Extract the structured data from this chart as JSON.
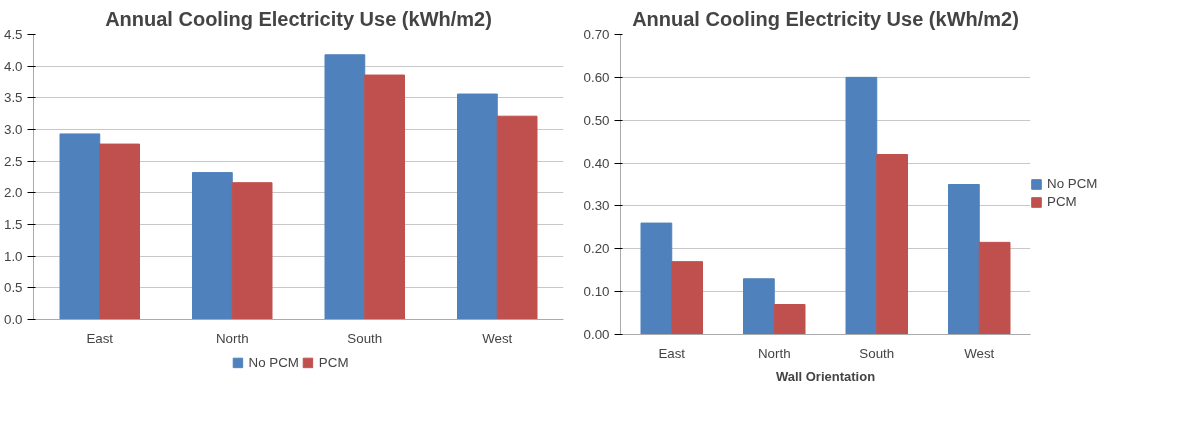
{
  "chart_data": [
    {
      "type": "bar",
      "title": "Annual Cooling Electricity Use (kWh/m2)",
      "categories": [
        "East",
        "North",
        "South",
        "West"
      ],
      "series": [
        {
          "name": "No PCM",
          "color": "#4f81bd",
          "values": [
            2.93,
            2.32,
            4.18,
            3.56
          ]
        },
        {
          "name": "PCM",
          "color": "#c0504d",
          "values": [
            2.77,
            2.16,
            3.86,
            3.21
          ]
        }
      ],
      "ylim": [
        0,
        4.5
      ],
      "yticks": [
        {
          "value": 0,
          "label": "0.0"
        },
        {
          "value": 0.5,
          "label": "0.5"
        },
        {
          "value": 1,
          "label": "1.0"
        },
        {
          "value": 1.5,
          "label": "1.5"
        },
        {
          "value": 2,
          "label": "2.0"
        },
        {
          "value": 2.5,
          "label": "2.5"
        },
        {
          "value": 3,
          "label": "3.0"
        },
        {
          "value": 3.5,
          "label": "3.5"
        },
        {
          "value": 4,
          "label": "4.0"
        },
        {
          "value": 4.5,
          "label": "4.5"
        }
      ],
      "grid": "y",
      "legend": "bottom"
    },
    {
      "type": "bar",
      "title": "Annual Cooling Electricity Use (kWh/m2)",
      "xlabel": "Wall Orientation",
      "categories": [
        "East",
        "North",
        "South",
        "West"
      ],
      "series": [
        {
          "name": "No PCM",
          "color": "#4f81bd",
          "values": [
            0.26,
            0.13,
            0.6,
            0.35
          ]
        },
        {
          "name": "PCM",
          "color": "#c0504d",
          "values": [
            0.17,
            0.07,
            0.42,
            0.215
          ]
        }
      ],
      "ylim": [
        0,
        0.7
      ],
      "yticks": [
        {
          "value": 0,
          "label": "0.00"
        },
        {
          "value": 0.1,
          "label": "0.10"
        },
        {
          "value": 0.2,
          "label": "0.20"
        },
        {
          "value": 0.3,
          "label": "0.30"
        },
        {
          "value": 0.4,
          "label": "0.40"
        },
        {
          "value": 0.5,
          "label": "0.50"
        },
        {
          "value": 0.6,
          "label": "0.60"
        },
        {
          "value": 0.7,
          "label": "0.70"
        }
      ],
      "grid": "y",
      "legend": "right"
    }
  ]
}
